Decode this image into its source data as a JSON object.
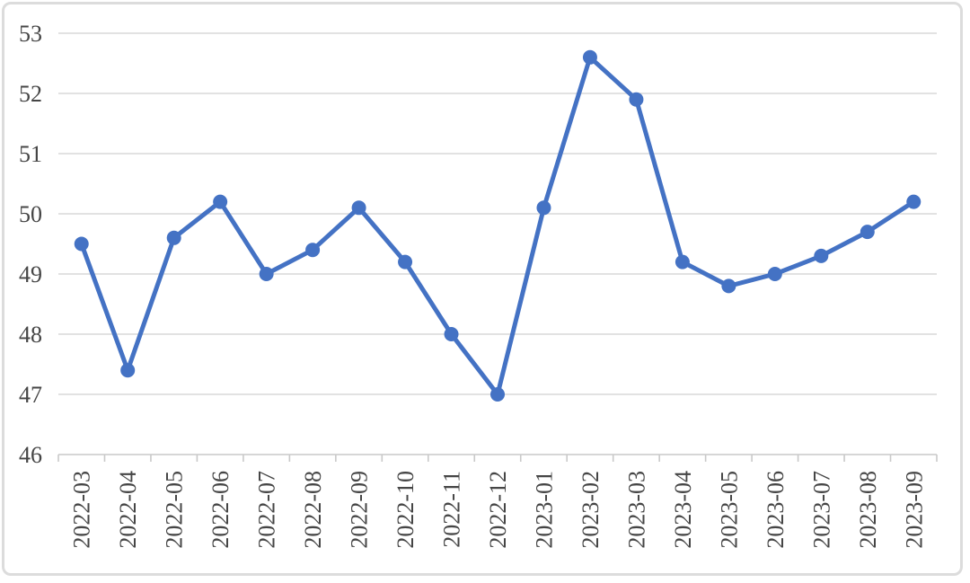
{
  "chart_data": {
    "type": "line",
    "title": "",
    "xlabel": "",
    "ylabel": "",
    "categories": [
      "2022-03",
      "2022-04",
      "2022-05",
      "2022-06",
      "2022-07",
      "2022-08",
      "2022-09",
      "2022-10",
      "2022-11",
      "2022-12",
      "2023-01",
      "2023-02",
      "2023-03",
      "2023-04",
      "2023-05",
      "2023-06",
      "2023-07",
      "2023-08",
      "2023-09"
    ],
    "values": [
      49.5,
      47.4,
      49.6,
      50.2,
      49.0,
      49.4,
      50.1,
      49.2,
      48.0,
      47.0,
      50.1,
      52.6,
      51.9,
      49.2,
      48.8,
      49.0,
      49.3,
      49.7,
      50.2
    ],
    "ylim": [
      46,
      53
    ],
    "ytick_interval": 1,
    "y_tick_labels": [
      "46",
      "47",
      "48",
      "49",
      "50",
      "51",
      "52",
      "53"
    ],
    "x_label_rotation_degrees": 90,
    "grid": "horizontal",
    "legend": false,
    "marker": "circle"
  },
  "style": {
    "line_color": "#4472C4",
    "marker_color": "#4472C4",
    "gridline_color": "#D9D9D9",
    "axis_color": "#C9C9C9",
    "text_color": "#454545",
    "frame_border_color": "#DCDCDC",
    "background_color": "#FFFFFF"
  }
}
